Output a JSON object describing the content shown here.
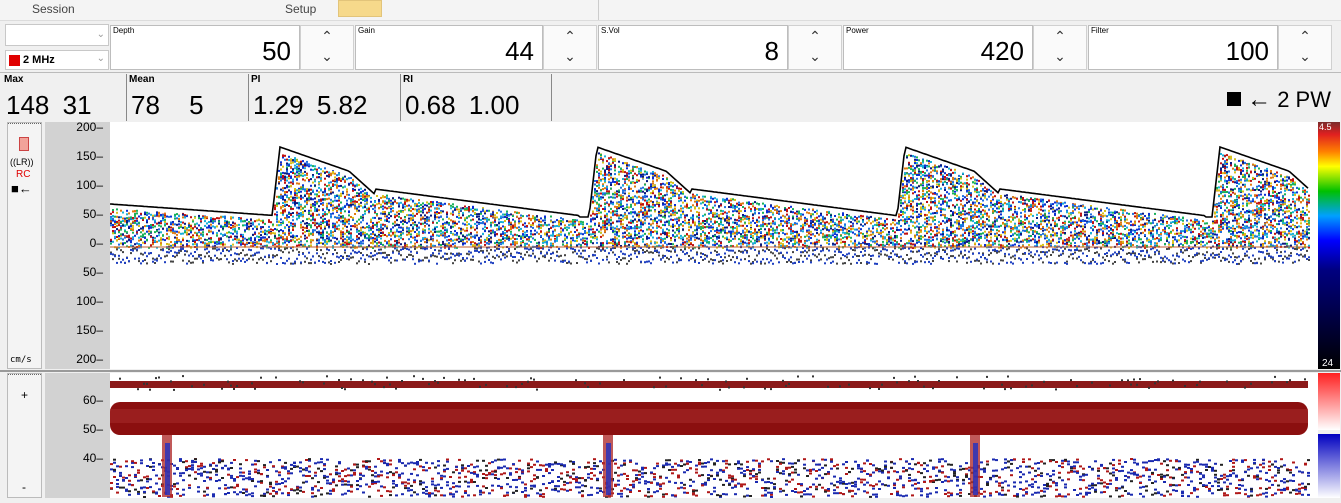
{
  "menu": {
    "session": "Session",
    "setup": "Setup"
  },
  "probe": {
    "frequency": "2 MHz",
    "color": "#e00000"
  },
  "params": [
    {
      "label": "Depth",
      "value": "50"
    },
    {
      "label": "Gain",
      "value": "44"
    },
    {
      "label": "S.Vol",
      "value": "8"
    },
    {
      "label": "Power",
      "value": "420"
    },
    {
      "label": "Filter",
      "value": "100"
    }
  ],
  "measurements": [
    {
      "label": "Max",
      "value": "148 31"
    },
    {
      "label": "Mean",
      "value": "78 5"
    },
    {
      "label": "PI",
      "value": "1.29 5.82"
    },
    {
      "label": "RI",
      "value": "0.68 1.00"
    }
  ],
  "channel": {
    "label": "2 PW"
  },
  "side": {
    "lr": "((LR))",
    "rc": "RC",
    "unit": "cm/s",
    "plus": "+",
    "minus": "-"
  },
  "spectrum_axis": [
    "200",
    "150",
    "100",
    "50",
    "0",
    "50",
    "100",
    "150",
    "200"
  ],
  "mmode_axis": [
    "60",
    "50",
    "40"
  ],
  "colorbar_top": "4.5",
  "colorbar_bottom": "24",
  "colors": {
    "envelope": "#000000",
    "vessel": "#8b0f0f",
    "accent_red": "#e00000"
  }
}
